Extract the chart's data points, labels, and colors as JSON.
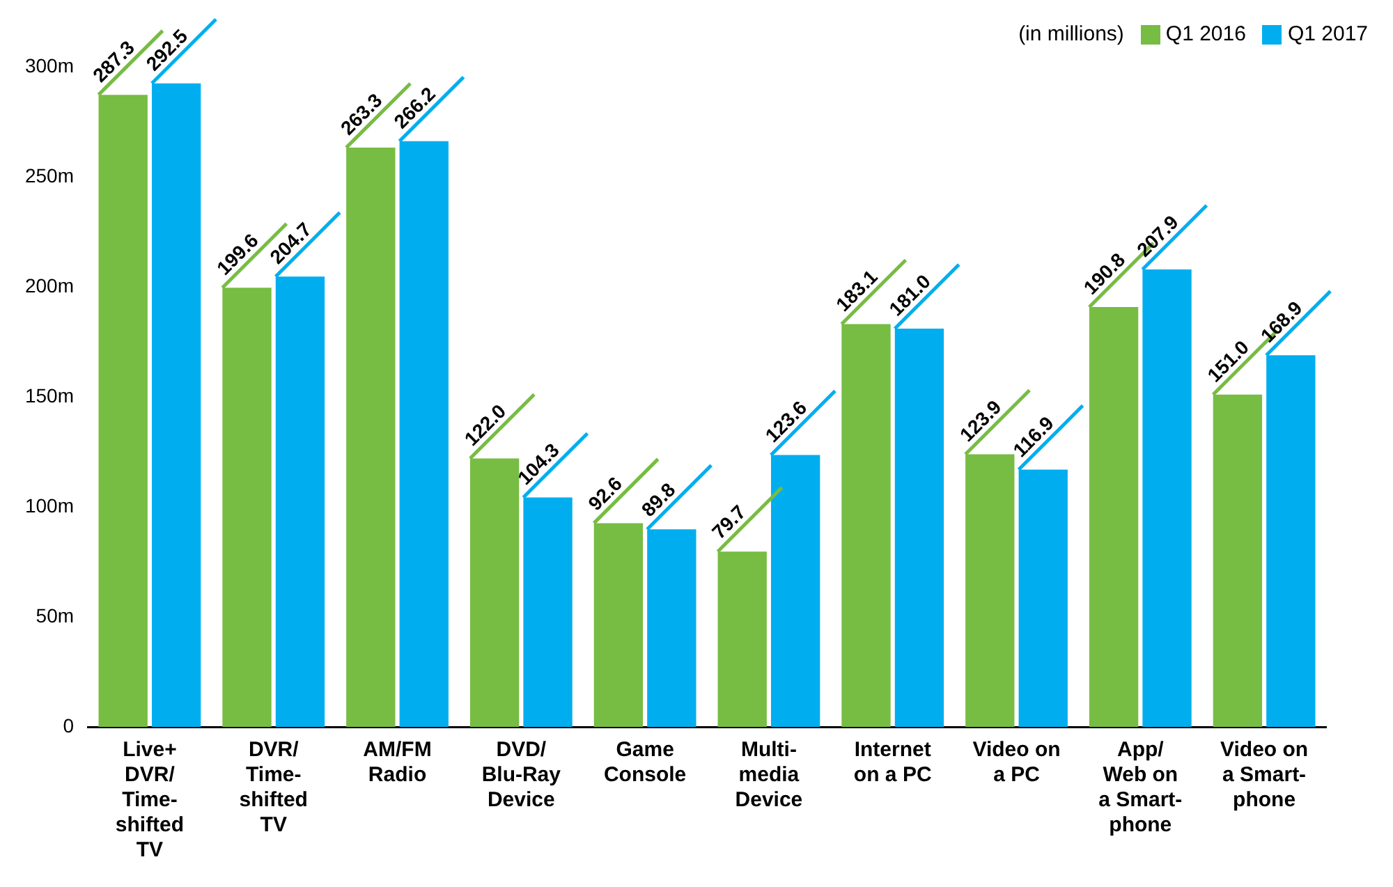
{
  "chart_data": {
    "type": "bar",
    "legend_title": "(in millions)",
    "legend": "top right",
    "categories": [
      "Live+\nDVR/\nTime-\nshifted\nTV",
      "DVR/\nTime-\nshifted\nTV",
      "AM/FM\nRadio",
      "DVD/\nBlu-Ray\nDevice",
      "Game\nConsole",
      "Multi-\nmedia\nDevice",
      "Internet\non a PC",
      "Video on\na PC",
      "App/\nWeb on\na Smart-\nphone",
      "Video on\na Smart-\nphone"
    ],
    "series": [
      {
        "name": "Q1 2016",
        "color": "#77bc43",
        "values": [
          287.3,
          199.6,
          263.3,
          122.0,
          92.6,
          79.7,
          183.1,
          123.9,
          190.8,
          151.0
        ],
        "value_labels": [
          "287.3",
          "199.6",
          "263.3",
          "122.0",
          "92.6",
          "79.7",
          "183.1",
          "123.9",
          "190.8",
          "151.0"
        ]
      },
      {
        "name": "Q1 2017",
        "color": "#00aeef",
        "values": [
          292.5,
          204.7,
          266.2,
          104.3,
          89.8,
          123.6,
          181.0,
          116.9,
          207.9,
          168.9
        ],
        "value_labels": [
          "292.5",
          "204.7",
          "266.2",
          "104.3",
          "89.8",
          "123.6",
          "181.0",
          "116.9",
          "207.9",
          "168.9"
        ]
      }
    ],
    "ylim": [
      0,
      300
    ],
    "yticks": [
      0,
      {
        "value": 50,
        "label": "50m"
      },
      {
        "value": 100,
        "label": "100m"
      },
      {
        "value": 150,
        "label": "150m"
      },
      {
        "value": 200,
        "label": "200m"
      },
      {
        "value": 250,
        "label": "250m"
      },
      {
        "value": 300,
        "label": "300m"
      }
    ]
  }
}
